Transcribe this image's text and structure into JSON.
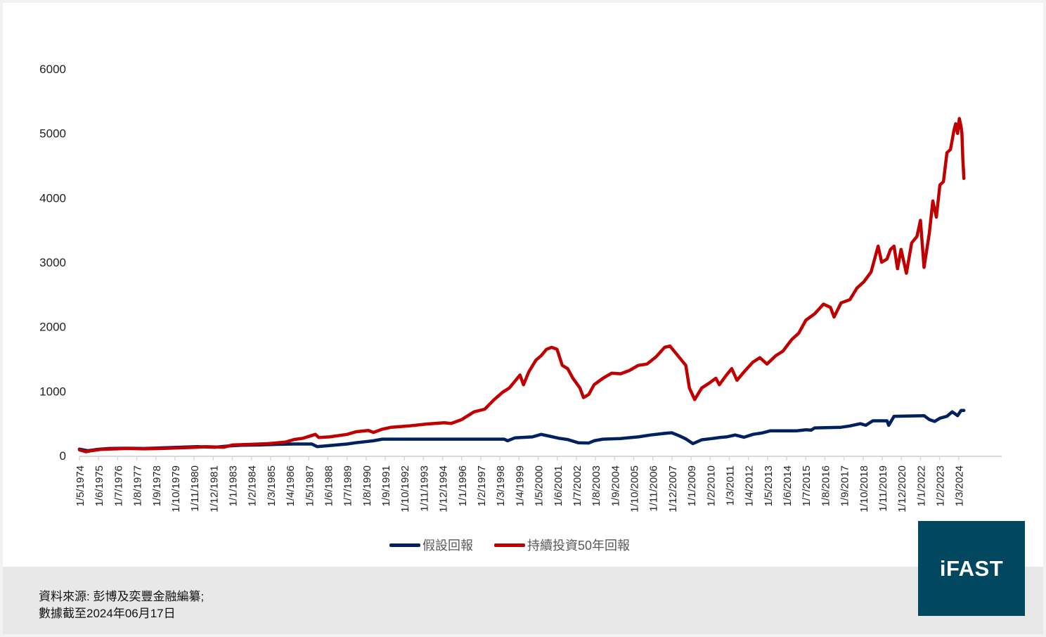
{
  "chart_data": {
    "type": "line",
    "title": "",
    "xlabel": "",
    "ylabel": "",
    "ylim": [
      0,
      6000
    ],
    "yticks": [
      0,
      1000,
      2000,
      3000,
      4000,
      5000,
      6000
    ],
    "grid": false,
    "legend_position": "bottom",
    "x_tick_labels": [
      "1/5/1974",
      "1/6/1975",
      "1/7/1976",
      "1/8/1977",
      "1/9/1978",
      "1/10/1979",
      "1/11/1980",
      "1/12/1981",
      "1/1/1983",
      "1/2/1984",
      "1/3/1985",
      "1/4/1986",
      "1/5/1987",
      "1/6/1988",
      "1/7/1989",
      "1/8/1990",
      "1/9/1991",
      "1/10/1992",
      "1/11/1993",
      "1/12/1994",
      "1/1/1996",
      "1/2/1997",
      "1/3/1998",
      "1/4/1999",
      "1/5/2000",
      "1/6/2001",
      "1/7/2002",
      "1/8/2003",
      "1/9/2004",
      "1/10/2005",
      "1/11/2006",
      "1/12/2007",
      "1/1/2009",
      "1/2/2010",
      "1/3/2011",
      "1/4/2012",
      "1/5/2013",
      "1/6/2014",
      "1/7/2015",
      "1/8/2016",
      "1/9/2017",
      "1/10/2018",
      "1/11/2019",
      "1/12/2020",
      "1/1/2022",
      "1/2/2023",
      "1/3/2024"
    ],
    "x_range": [
      1974.33,
      2024.46
    ],
    "series": [
      {
        "name": "假設回報",
        "color": "#002060",
        "points": [
          [
            1974.33,
            100
          ],
          [
            1974.8,
            75
          ],
          [
            1975.3,
            95
          ],
          [
            1976.0,
            110
          ],
          [
            1977.0,
            115
          ],
          [
            1978.0,
            110
          ],
          [
            1979.0,
            120
          ],
          [
            1980.0,
            130
          ],
          [
            1981.0,
            140
          ],
          [
            1982.0,
            130
          ],
          [
            1982.8,
            150
          ],
          [
            1983.5,
            160
          ],
          [
            1984.5,
            165
          ],
          [
            1985.5,
            175
          ],
          [
            1986.5,
            180
          ],
          [
            1987.5,
            180
          ],
          [
            1987.8,
            140
          ],
          [
            1988.5,
            155
          ],
          [
            1989.5,
            180
          ],
          [
            1990.0,
            200
          ],
          [
            1990.5,
            215
          ],
          [
            1991.0,
            230
          ],
          [
            1991.5,
            255
          ],
          [
            1995.0,
            255
          ],
          [
            1998.4,
            255
          ],
          [
            1998.6,
            230
          ],
          [
            1999.0,
            275
          ],
          [
            2000.0,
            290
          ],
          [
            2000.5,
            330
          ],
          [
            2001.0,
            300
          ],
          [
            2001.5,
            270
          ],
          [
            2002.0,
            250
          ],
          [
            2002.6,
            200
          ],
          [
            2003.2,
            195
          ],
          [
            2003.5,
            230
          ],
          [
            2004.0,
            255
          ],
          [
            2005.0,
            265
          ],
          [
            2006.0,
            290
          ],
          [
            2006.7,
            320
          ],
          [
            2007.5,
            345
          ],
          [
            2007.9,
            355
          ],
          [
            2008.3,
            310
          ],
          [
            2008.7,
            260
          ],
          [
            2009.1,
            185
          ],
          [
            2009.6,
            245
          ],
          [
            2010.2,
            265
          ],
          [
            2010.6,
            280
          ],
          [
            2011.0,
            290
          ],
          [
            2011.5,
            320
          ],
          [
            2012.0,
            285
          ],
          [
            2012.5,
            330
          ],
          [
            2013.0,
            350
          ],
          [
            2013.5,
            385
          ],
          [
            2015.0,
            385
          ],
          [
            2015.5,
            400
          ],
          [
            2015.8,
            395
          ],
          [
            2016.0,
            430
          ],
          [
            2017.5,
            440
          ],
          [
            2018.0,
            460
          ],
          [
            2018.6,
            495
          ],
          [
            2018.9,
            470
          ],
          [
            2019.3,
            540
          ],
          [
            2020.1,
            540
          ],
          [
            2020.2,
            470
          ],
          [
            2020.5,
            610
          ],
          [
            2022.2,
            620
          ],
          [
            2022.5,
            560
          ],
          [
            2022.8,
            530
          ],
          [
            2023.1,
            580
          ],
          [
            2023.5,
            610
          ],
          [
            2023.8,
            680
          ],
          [
            2024.1,
            620
          ],
          [
            2024.3,
            700
          ],
          [
            2024.46,
            700
          ]
        ]
      },
      {
        "name": "持續投資50年回報",
        "color": "#c00000",
        "points": [
          [
            1974.33,
            90
          ],
          [
            1974.7,
            60
          ],
          [
            1975.0,
            75
          ],
          [
            1975.5,
            95
          ],
          [
            1976.0,
            100
          ],
          [
            1977.0,
            110
          ],
          [
            1978.0,
            105
          ],
          [
            1979.0,
            110
          ],
          [
            1980.0,
            120
          ],
          [
            1981.0,
            130
          ],
          [
            1981.5,
            140
          ],
          [
            1982.5,
            130
          ],
          [
            1983.0,
            165
          ],
          [
            1984.0,
            175
          ],
          [
            1985.0,
            185
          ],
          [
            1986.0,
            210
          ],
          [
            1986.5,
            250
          ],
          [
            1987.0,
            270
          ],
          [
            1987.7,
            330
          ],
          [
            1987.9,
            280
          ],
          [
            1988.5,
            290
          ],
          [
            1989.5,
            330
          ],
          [
            1990.0,
            370
          ],
          [
            1990.7,
            390
          ],
          [
            1991.0,
            360
          ],
          [
            1991.5,
            410
          ],
          [
            1992.0,
            440
          ],
          [
            1993.0,
            460
          ],
          [
            1994.0,
            490
          ],
          [
            1995.0,
            510
          ],
          [
            1995.4,
            500
          ],
          [
            1996.0,
            560
          ],
          [
            1996.7,
            680
          ],
          [
            1997.3,
            720
          ],
          [
            1997.8,
            860
          ],
          [
            1998.3,
            980
          ],
          [
            1998.7,
            1050
          ],
          [
            1999.0,
            1150
          ],
          [
            1999.3,
            1250
          ],
          [
            1999.5,
            1100
          ],
          [
            1999.8,
            1300
          ],
          [
            2000.2,
            1480
          ],
          [
            2000.5,
            1550
          ],
          [
            2000.8,
            1650
          ],
          [
            2001.1,
            1680
          ],
          [
            2001.4,
            1650
          ],
          [
            2001.7,
            1400
          ],
          [
            2002.0,
            1350
          ],
          [
            2002.3,
            1200
          ],
          [
            2002.7,
            1050
          ],
          [
            2002.9,
            900
          ],
          [
            2003.2,
            950
          ],
          [
            2003.5,
            1100
          ],
          [
            2004.0,
            1200
          ],
          [
            2004.5,
            1280
          ],
          [
            2005.0,
            1270
          ],
          [
            2005.5,
            1320
          ],
          [
            2006.0,
            1400
          ],
          [
            2006.5,
            1420
          ],
          [
            2007.0,
            1530
          ],
          [
            2007.5,
            1680
          ],
          [
            2007.8,
            1700
          ],
          [
            2008.1,
            1600
          ],
          [
            2008.4,
            1500
          ],
          [
            2008.7,
            1400
          ],
          [
            2008.9,
            1050
          ],
          [
            2009.2,
            870
          ],
          [
            2009.6,
            1050
          ],
          [
            2010.0,
            1120
          ],
          [
            2010.4,
            1200
          ],
          [
            2010.6,
            1100
          ],
          [
            2011.0,
            1250
          ],
          [
            2011.3,
            1350
          ],
          [
            2011.6,
            1170
          ],
          [
            2012.0,
            1300
          ],
          [
            2012.5,
            1450
          ],
          [
            2012.9,
            1520
          ],
          [
            2013.3,
            1420
          ],
          [
            2013.8,
            1550
          ],
          [
            2014.2,
            1620
          ],
          [
            2014.7,
            1800
          ],
          [
            2015.1,
            1900
          ],
          [
            2015.5,
            2100
          ],
          [
            2016.0,
            2200
          ],
          [
            2016.5,
            2350
          ],
          [
            2016.9,
            2300
          ],
          [
            2017.1,
            2150
          ],
          [
            2017.5,
            2370
          ],
          [
            2018.0,
            2420
          ],
          [
            2018.4,
            2600
          ],
          [
            2018.8,
            2700
          ],
          [
            2019.2,
            2850
          ],
          [
            2019.4,
            3050
          ],
          [
            2019.6,
            3250
          ],
          [
            2019.8,
            3000
          ],
          [
            2020.1,
            3050
          ],
          [
            2020.3,
            3200
          ],
          [
            2020.5,
            3250
          ],
          [
            2020.7,
            2900
          ],
          [
            2020.9,
            3200
          ],
          [
            2021.2,
            2830
          ],
          [
            2021.5,
            3300
          ],
          [
            2021.8,
            3400
          ],
          [
            2022.0,
            3650
          ],
          [
            2022.2,
            2920
          ],
          [
            2022.5,
            3450
          ],
          [
            2022.7,
            3950
          ],
          [
            2022.9,
            3700
          ],
          [
            2023.1,
            4200
          ],
          [
            2023.3,
            4250
          ],
          [
            2023.5,
            4700
          ],
          [
            2023.7,
            4750
          ],
          [
            2023.9,
            5050
          ],
          [
            2024.0,
            5150
          ],
          [
            2024.1,
            5000
          ],
          [
            2024.2,
            5230
          ],
          [
            2024.3,
            5100
          ],
          [
            2024.35,
            5000
          ],
          [
            2024.4,
            4600
          ],
          [
            2024.46,
            4300
          ]
        ]
      }
    ]
  },
  "legend": {
    "items": [
      {
        "label": "假設回報",
        "color": "#002060"
      },
      {
        "label": "持續投資50年回報",
        "color": "#c00000"
      }
    ]
  },
  "footer": {
    "source_line": "資料來源: 彭博及奕豐金融編纂;",
    "date_line": "數據截至2024年06月17日"
  },
  "logo": {
    "text": "iFAST",
    "background": "#00475f"
  }
}
